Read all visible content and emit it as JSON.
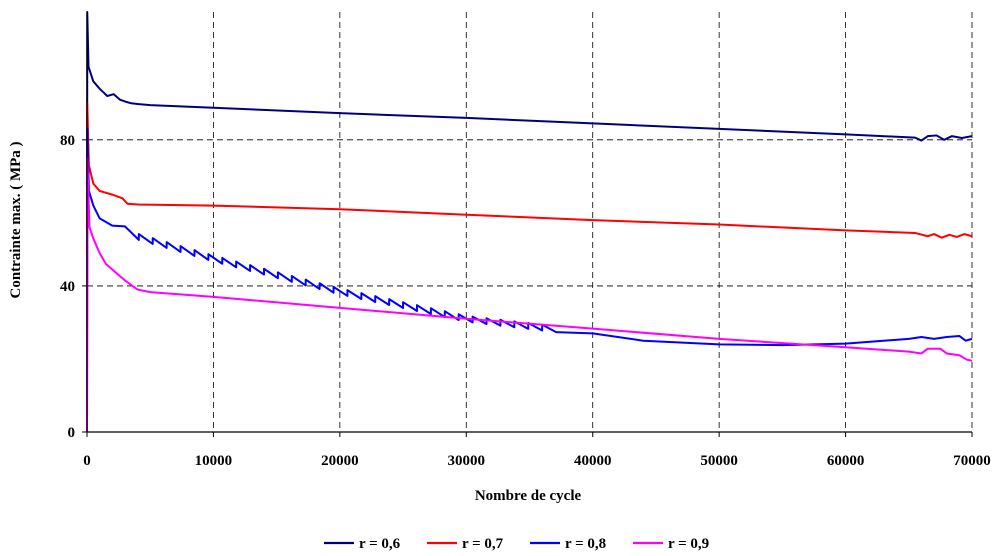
{
  "chart_data": {
    "type": "line",
    "title": "",
    "xlabel": "Nombre de cycle",
    "ylabel": "Contrainte max. ( MPa )",
    "xlim": [
      0,
      70000
    ],
    "ylim": [
      0,
      115
    ],
    "x_ticks": [
      "0",
      "10000",
      "20000",
      "30000",
      "40000",
      "50000",
      "60000",
      "70000"
    ],
    "y_ticks": [
      "0",
      "40",
      "80"
    ],
    "grid": "dashed vertical lines at each x tick; dashed horizontal lines at y = 40 and 80",
    "legend_position": "bottom-center",
    "series": [
      {
        "name": "r = 0,6",
        "color": "#00007F",
        "points": [
          [
            0,
            0
          ],
          [
            20,
            115
          ],
          [
            120,
            100
          ],
          [
            500,
            96
          ],
          [
            1000,
            94
          ],
          [
            1600,
            92
          ],
          [
            2100,
            92.5
          ],
          [
            2600,
            91
          ],
          [
            3000,
            90.5
          ],
          [
            3500,
            90
          ],
          [
            4000,
            89.8
          ],
          [
            5000,
            89.5
          ],
          [
            10000,
            88.8
          ],
          [
            20000,
            87.3
          ],
          [
            30000,
            86
          ],
          [
            40000,
            84.5
          ],
          [
            50000,
            83
          ],
          [
            60000,
            81.5
          ],
          [
            65500,
            80.6
          ],
          [
            66000,
            79.8
          ],
          [
            66500,
            81
          ],
          [
            67200,
            81.2
          ],
          [
            67800,
            80
          ],
          [
            68400,
            81
          ],
          [
            69200,
            80.5
          ],
          [
            70000,
            81
          ]
        ]
      },
      {
        "name": "r = 0,7",
        "color": "#FF0000",
        "points": [
          [
            0,
            0
          ],
          [
            20,
            90
          ],
          [
            150,
            73
          ],
          [
            500,
            68
          ],
          [
            1000,
            66
          ],
          [
            2000,
            65
          ],
          [
            2800,
            64
          ],
          [
            3200,
            62.5
          ],
          [
            4000,
            62.3
          ],
          [
            10000,
            62
          ],
          [
            20000,
            61
          ],
          [
            30000,
            59.5
          ],
          [
            40000,
            58
          ],
          [
            50000,
            56.8
          ],
          [
            60000,
            55.2
          ],
          [
            65500,
            54.5
          ],
          [
            66500,
            53.6
          ],
          [
            67000,
            54.2
          ],
          [
            67600,
            53.2
          ],
          [
            68200,
            54
          ],
          [
            68800,
            53.4
          ],
          [
            69400,
            54.2
          ],
          [
            70000,
            53.6
          ]
        ]
      },
      {
        "name": "r = 0,8",
        "color": "#0000FF",
        "points": [
          [
            0,
            0
          ],
          [
            20,
            83
          ],
          [
            150,
            66
          ],
          [
            500,
            62
          ],
          [
            1000,
            58.5
          ],
          [
            2000,
            56.5
          ],
          [
            3000,
            55.5
          ],
          [
            4000,
            53.5
          ],
          [
            5000,
            52.5
          ],
          [
            10000,
            47.5
          ],
          [
            20000,
            38.5
          ],
          [
            30000,
            31
          ],
          [
            40000,
            27
          ],
          [
            44000,
            25
          ],
          [
            50000,
            24
          ],
          [
            55000,
            23.8
          ],
          [
            60000,
            24.2
          ],
          [
            65000,
            25.5
          ],
          [
            66000,
            26
          ],
          [
            67000,
            25.5
          ],
          [
            68000,
            26
          ],
          [
            69000,
            26.3
          ],
          [
            69500,
            25
          ],
          [
            70000,
            25.5
          ]
        ],
        "annotation": "sawtooth oscillation of about 1.5 MPa with period about 1100 cycles between 3000 and 37000 cycles"
      },
      {
        "name": "r = 0,9",
        "color": "#FF00FF",
        "points": [
          [
            0,
            0
          ],
          [
            20,
            75
          ],
          [
            200,
            56
          ],
          [
            500,
            53
          ],
          [
            1000,
            49
          ],
          [
            1500,
            46
          ],
          [
            2000,
            44.5
          ],
          [
            2500,
            43
          ],
          [
            3000,
            41.5
          ],
          [
            4000,
            39
          ],
          [
            5000,
            38.3
          ],
          [
            10000,
            37
          ],
          [
            20000,
            34
          ],
          [
            30000,
            31
          ],
          [
            40000,
            28.3
          ],
          [
            50000,
            25.5
          ],
          [
            60000,
            23.2
          ],
          [
            65000,
            22
          ],
          [
            66000,
            21.5
          ],
          [
            66500,
            22.8
          ],
          [
            67500,
            22.8
          ],
          [
            68000,
            21.5
          ],
          [
            69000,
            21
          ],
          [
            69600,
            19.8
          ],
          [
            70000,
            19.5
          ]
        ]
      }
    ]
  }
}
